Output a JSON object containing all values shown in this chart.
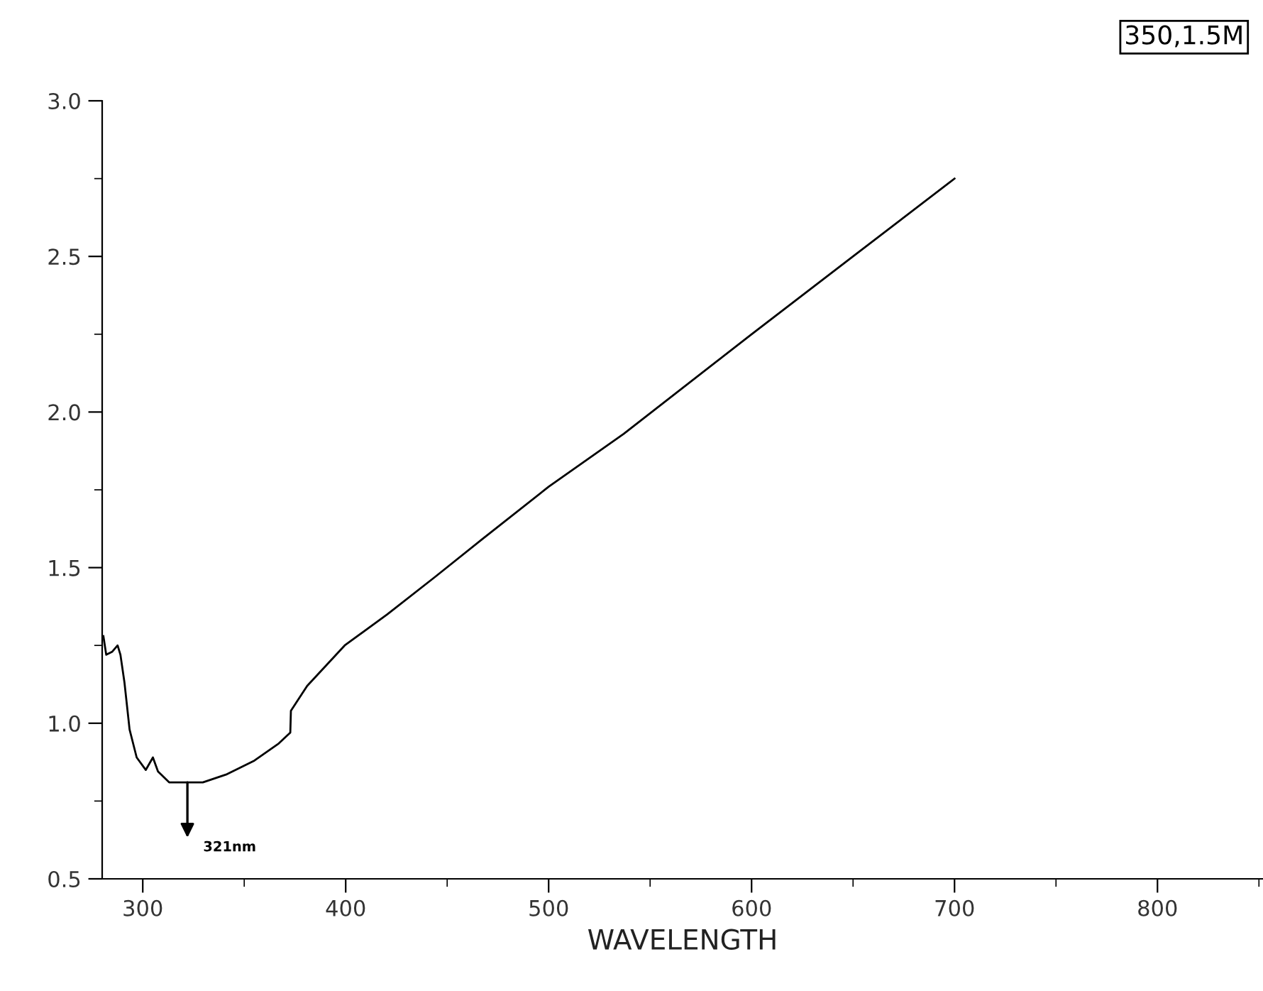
{
  "chart_data": {
    "type": "line",
    "xlabel": "WAVELENGTH",
    "x": [
      280.6,
      282,
      285,
      287.6,
      289,
      291,
      293.5,
      297,
      301.5,
      305,
      307.5,
      313,
      322,
      329.6,
      341,
      355,
      367,
      372.7,
      373,
      381,
      399.5,
      420.5,
      444,
      467,
      500,
      537,
      600,
      650,
      700
    ],
    "series": [
      {
        "color": "#000000",
        "values": [
          1.28,
          1.22,
          1.23,
          1.25,
          1.22,
          1.13,
          0.98,
          0.89,
          0.85,
          0.89,
          0.845,
          0.81,
          0.81,
          0.81,
          0.835,
          0.88,
          0.935,
          0.97,
          1.04,
          1.12,
          1.25,
          1.35,
          1.47,
          1.59,
          1.76,
          1.93,
          2.25,
          2.5,
          2.75
        ]
      }
    ],
    "xlim": [
      280,
      852
    ],
    "ylim": [
      0.5,
      3.0
    ],
    "xticks": [
      300,
      {
        "value": 350,
        "label": null
      },
      400,
      {
        "value": 450,
        "label": null
      },
      500,
      {
        "value": 550,
        "label": null
      },
      600,
      {
        "value": 650,
        "label": null
      },
      700,
      {
        "value": 750,
        "label": null
      },
      800,
      {
        "value": 850,
        "label": null
      }
    ],
    "yticks": [
      0.5,
      {
        "value": 0.75,
        "label": null
      },
      {
        "value": 1.0,
        "label": "1.0"
      },
      {
        "value": 1.25,
        "label": null
      },
      1.5,
      {
        "value": 1.75,
        "label": null
      },
      {
        "value": 2.0,
        "label": "2.0"
      },
      {
        "value": 2.25,
        "label": null
      },
      2.5,
      {
        "value": 2.75,
        "label": null
      },
      {
        "value": 3.0,
        "label": "3.0"
      }
    ],
    "annotations": [
      "321nm",
      "350,1.5M"
    ],
    "grid": false,
    "legend": false
  }
}
